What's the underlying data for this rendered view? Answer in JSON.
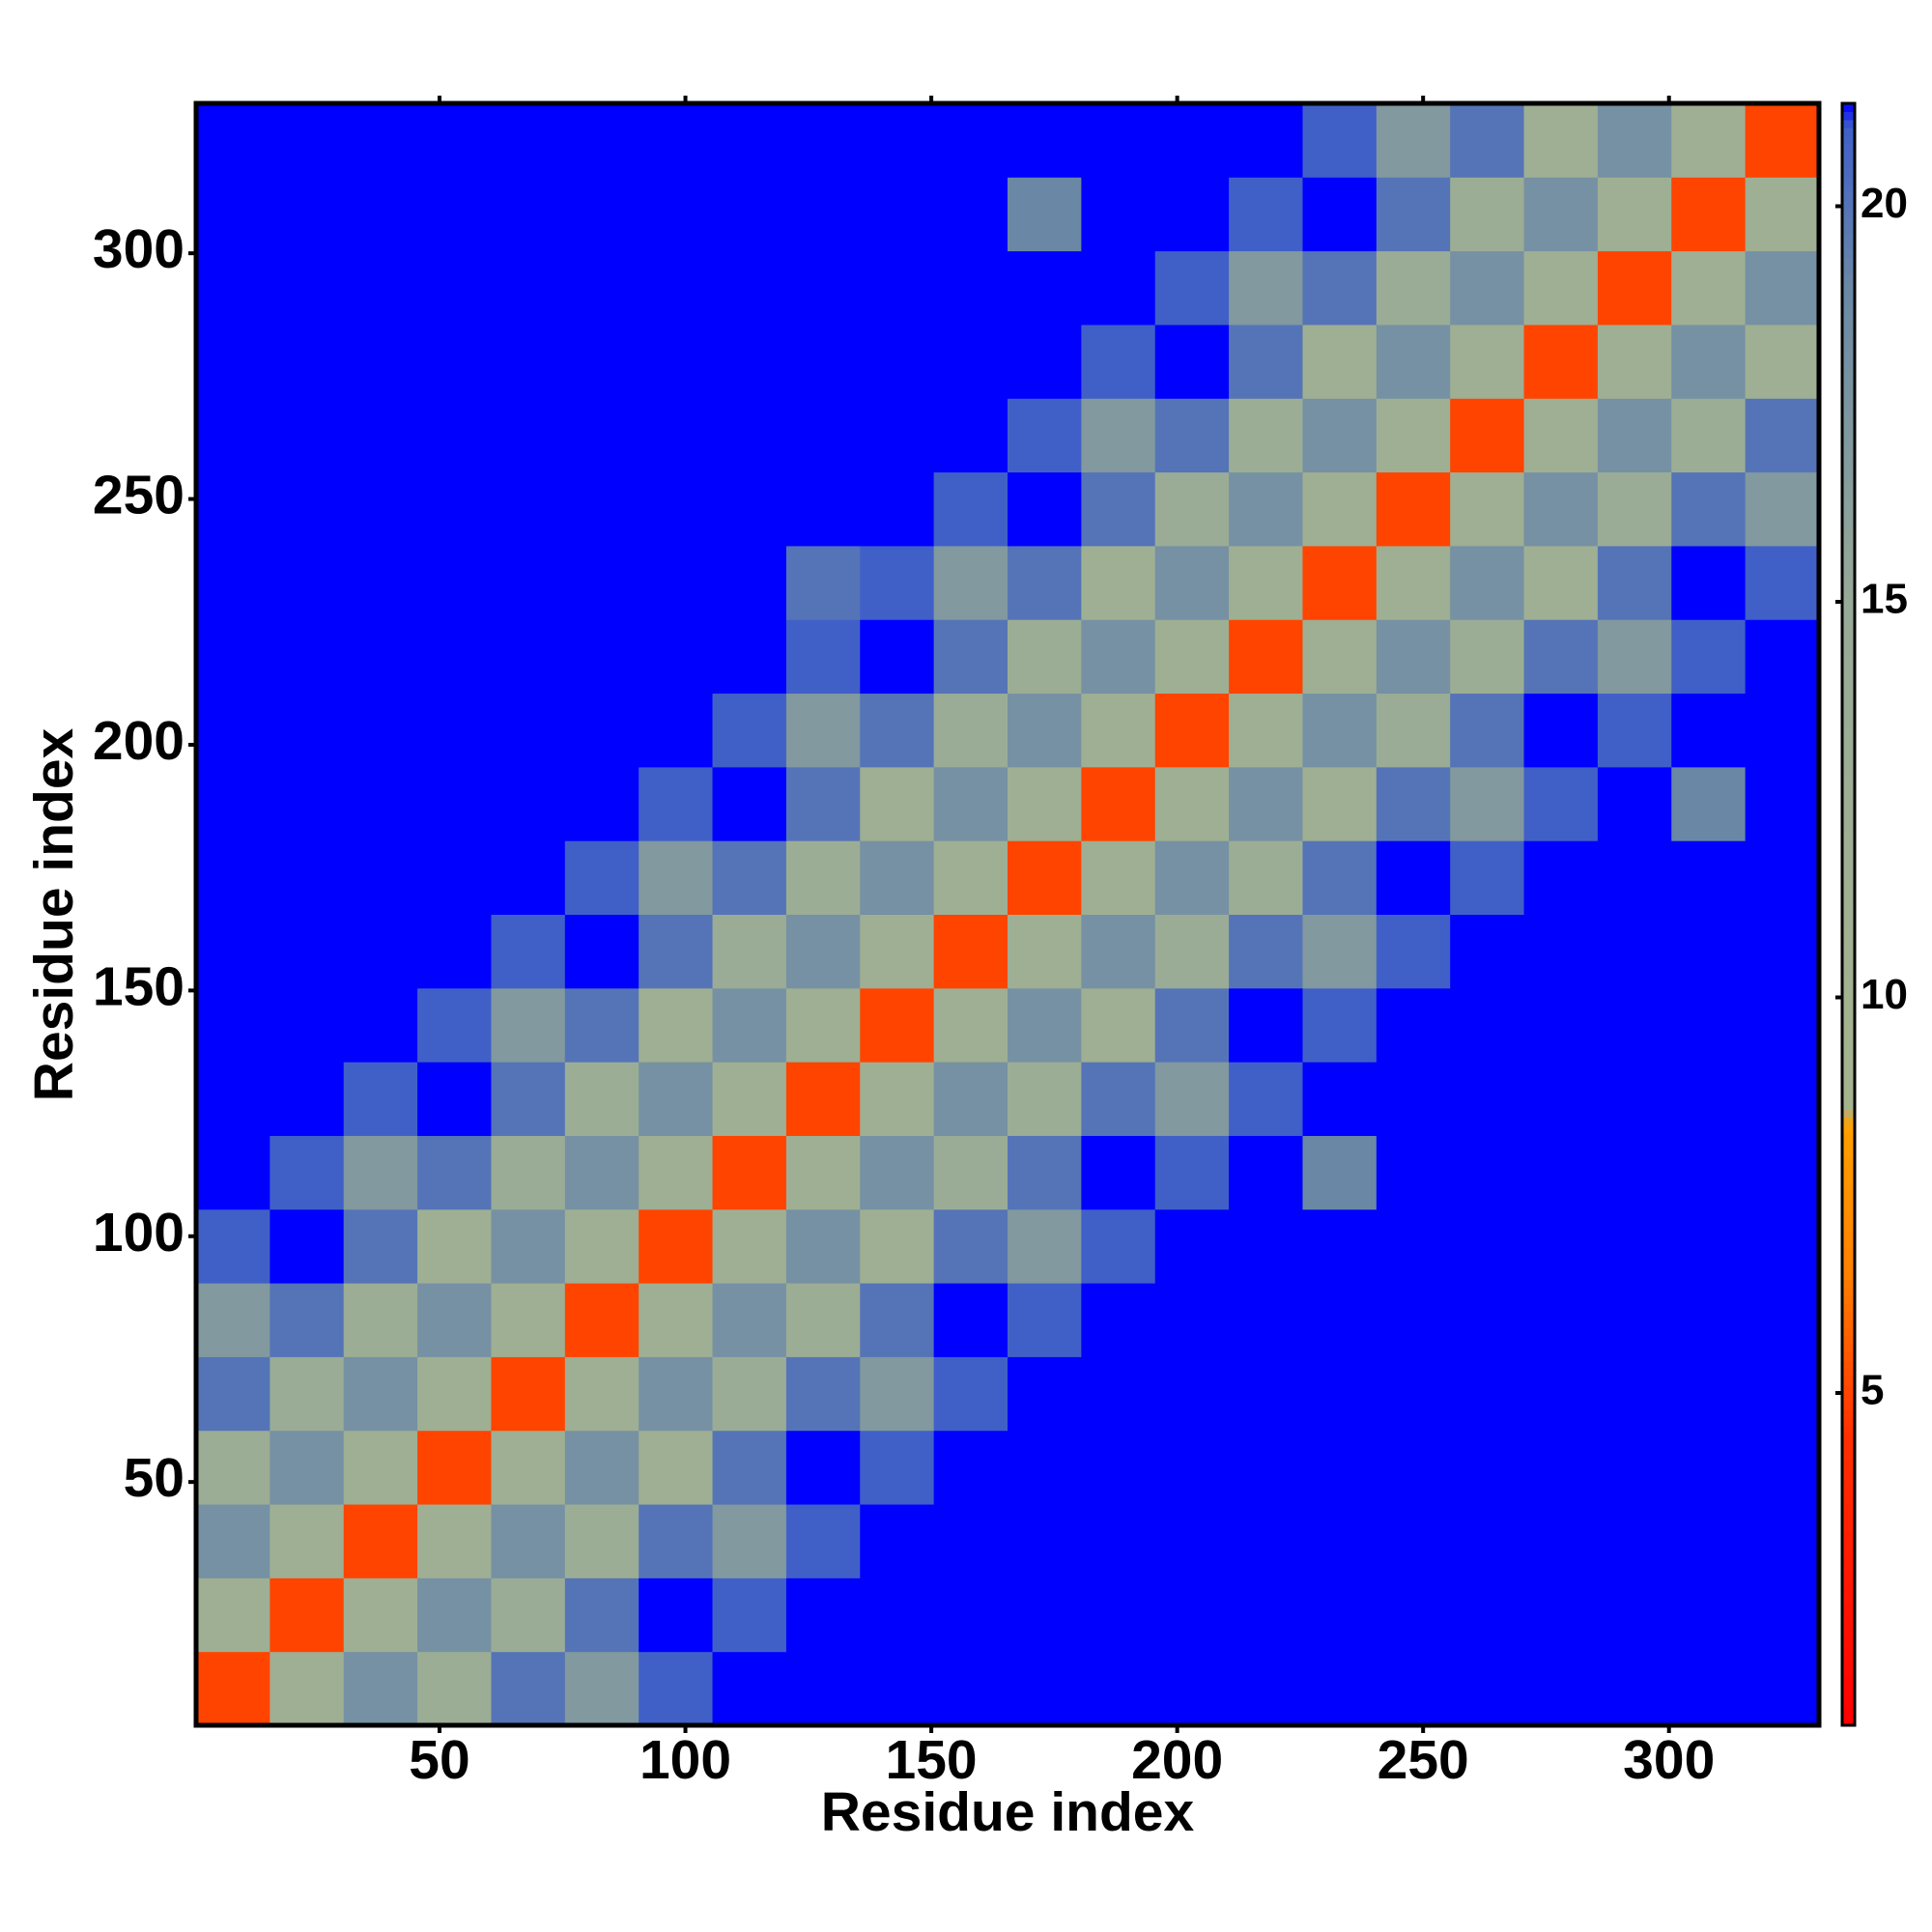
{
  "chart_data": {
    "type": "heatmap",
    "xlabel": "Residue index",
    "ylabel": "Residue index",
    "xbins": [
      0.5,
      15.5,
      30.5,
      45.5,
      60.5,
      75.5,
      90.5,
      105.5,
      120.5,
      135.5,
      150.5,
      165.5,
      180.5,
      195.5,
      210.5,
      225.5,
      240.5,
      255.5,
      270.5,
      285.5,
      300.5,
      315.5,
      330.5
    ],
    "ybins": [
      0.5,
      15.5,
      30.5,
      45.5,
      60.5,
      75.5,
      90.5,
      105.5,
      120.5,
      135.5,
      150.5,
      165.5,
      180.5,
      195.5,
      210.5,
      225.5,
      240.5,
      255.5,
      270.5,
      285.5,
      300.5,
      315.5,
      330.5
    ],
    "xlim": [
      0.5,
      330.5
    ],
    "ylim": [
      0.5,
      330.5
    ],
    "xticks": [
      50,
      100,
      150,
      200,
      250,
      300
    ],
    "yticks": [
      50,
      100,
      150,
      200,
      250,
      300
    ],
    "zlim": [
      0.8,
      21.3
    ],
    "zticks": [
      5,
      10,
      15,
      20
    ],
    "colorscale": [
      [
        0.8,
        "#ff0000"
      ],
      [
        4.5,
        "#ff3000"
      ],
      [
        6.5,
        "#ff8000"
      ],
      [
        8.4,
        "#ffa000"
      ],
      [
        8.6,
        "#a6b48e"
      ],
      [
        15,
        "#98aa98"
      ],
      [
        19,
        "#6a88a6"
      ],
      [
        21,
        "#4060c8"
      ],
      [
        21.3,
        "#0000ff"
      ]
    ],
    "over_color": "#0000ff",
    "z": [
      [
        5,
        12,
        18,
        13,
        20,
        17,
        21,
        25,
        25,
        25,
        25,
        25,
        25,
        25,
        25,
        25,
        25,
        25,
        25,
        25,
        25,
        25
      ],
      [
        12,
        5,
        12,
        18,
        14,
        20,
        22,
        21,
        25,
        25,
        25,
        25,
        25,
        25,
        25,
        25,
        25,
        25,
        25,
        25,
        25,
        25
      ],
      [
        18,
        12,
        5,
        12,
        18,
        13,
        20,
        17,
        21,
        25,
        25,
        25,
        25,
        25,
        25,
        25,
        25,
        25,
        25,
        25,
        25,
        25
      ],
      [
        13,
        18,
        12,
        5,
        12,
        18,
        12,
        20,
        22,
        21,
        25,
        25,
        25,
        25,
        25,
        25,
        25,
        25,
        25,
        25,
        25,
        25
      ],
      [
        20,
        14,
        18,
        12,
        5,
        12,
        18,
        14,
        20,
        17,
        21,
        25,
        25,
        25,
        25,
        25,
        25,
        25,
        25,
        25,
        25,
        25
      ],
      [
        17,
        20,
        13,
        18,
        12,
        5,
        12,
        18,
        13,
        20,
        22,
        21,
        25,
        25,
        25,
        25,
        25,
        25,
        25,
        25,
        25,
        25
      ],
      [
        21,
        22,
        20,
        12,
        18,
        12,
        5,
        12,
        18,
        12,
        20,
        17,
        21,
        25,
        25,
        25,
        25,
        25,
        25,
        25,
        25,
        25
      ],
      [
        25,
        21,
        17,
        20,
        14,
        18,
        12,
        5,
        12,
        18,
        14,
        20,
        22,
        21,
        25,
        19,
        25,
        25,
        25,
        25,
        25,
        25
      ],
      [
        25,
        25,
        21,
        22,
        20,
        13,
        18,
        12,
        5,
        12,
        18,
        13,
        20,
        17,
        21,
        25,
        25,
        25,
        25,
        25,
        25,
        25
      ],
      [
        25,
        25,
        25,
        21,
        17,
        20,
        12,
        18,
        12,
        5,
        12,
        18,
        12,
        20,
        22,
        21,
        25,
        25,
        25,
        25,
        25,
        25
      ],
      [
        25,
        25,
        25,
        25,
        21,
        22,
        20,
        14,
        18,
        12,
        5,
        12,
        18,
        14,
        20,
        17,
        21,
        25,
        25,
        25,
        25,
        25
      ],
      [
        25,
        25,
        25,
        25,
        25,
        21,
        17,
        20,
        13,
        18,
        12,
        5,
        12,
        18,
        13,
        20,
        22,
        21,
        25,
        25,
        25,
        25
      ],
      [
        25,
        25,
        25,
        25,
        25,
        25,
        21,
        22,
        20,
        12,
        18,
        12,
        5,
        12,
        18,
        12,
        20,
        17,
        21,
        25,
        19,
        25
      ],
      [
        25,
        25,
        25,
        25,
        25,
        25,
        25,
        21,
        17,
        20,
        14,
        18,
        12,
        5,
        12,
        18,
        14,
        20,
        22,
        21,
        25,
        25
      ],
      [
        25,
        25,
        25,
        25,
        25,
        25,
        25,
        25,
        21,
        22,
        20,
        13,
        18,
        12,
        5,
        12,
        18,
        13,
        20,
        17,
        21,
        25
      ],
      [
        25,
        25,
        25,
        25,
        25,
        25,
        25,
        25,
        20,
        21,
        17,
        20,
        12,
        18,
        12,
        5,
        12,
        18,
        12,
        20,
        22,
        21
      ],
      [
        25,
        25,
        25,
        25,
        25,
        25,
        25,
        25,
        25,
        25,
        21,
        22,
        20,
        14,
        18,
        12,
        5,
        12,
        18,
        14,
        20,
        17
      ],
      [
        25,
        25,
        25,
        25,
        25,
        25,
        25,
        25,
        25,
        25,
        25,
        21,
        17,
        20,
        13,
        18,
        12,
        5,
        12,
        18,
        13,
        20
      ],
      [
        25,
        25,
        25,
        25,
        25,
        25,
        25,
        25,
        25,
        25,
        25,
        25,
        21,
        22,
        20,
        12,
        18,
        12,
        5,
        12,
        18,
        12
      ],
      [
        25,
        25,
        25,
        25,
        25,
        25,
        25,
        25,
        25,
        25,
        25,
        25,
        25,
        21,
        17,
        20,
        14,
        18,
        12,
        5,
        12,
        18
      ],
      [
        25,
        25,
        25,
        25,
        25,
        25,
        25,
        25,
        25,
        25,
        25,
        19,
        25,
        25,
        21,
        22,
        20,
        13,
        18,
        12,
        5,
        12
      ],
      [
        25,
        25,
        25,
        25,
        25,
        25,
        25,
        25,
        25,
        25,
        25,
        25,
        25,
        25,
        25,
        21,
        17,
        20,
        12,
        18,
        12,
        5
      ]
    ]
  }
}
